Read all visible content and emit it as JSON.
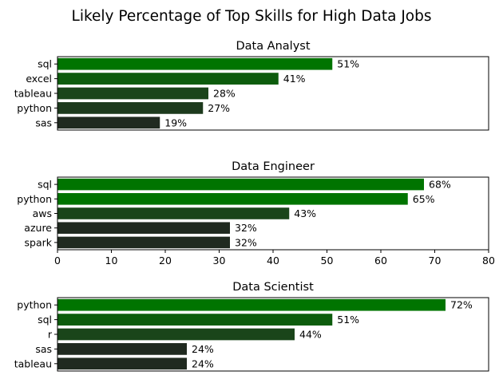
{
  "figure": {
    "title": "Likely Percentage of Top Skills for High Data Jobs"
  },
  "chart_data": [
    {
      "type": "bar",
      "orientation": "horizontal",
      "title": "Data Analyst",
      "categories": [
        "sql",
        "excel",
        "tableau",
        "python",
        "sas"
      ],
      "values": [
        51,
        41,
        28,
        27,
        19
      ],
      "value_labels": [
        "51%",
        "41%",
        "28%",
        "27%",
        "19%"
      ],
      "xlim": [
        0,
        80
      ],
      "x_ticks_visible": false,
      "colors": [
        "#007400",
        "#0d5c0d",
        "#1a451a",
        "#1d3a1d",
        "#202a20"
      ]
    },
    {
      "type": "bar",
      "orientation": "horizontal",
      "title": "Data Engineer",
      "categories": [
        "sql",
        "python",
        "aws",
        "azure",
        "spark"
      ],
      "values": [
        68,
        65,
        43,
        32,
        32
      ],
      "value_labels": [
        "68%",
        "65%",
        "43%",
        "32%",
        "32%"
      ],
      "xlim": [
        0,
        80
      ],
      "x_ticks": [
        "0",
        "10",
        "20",
        "30",
        "40",
        "50",
        "60",
        "70",
        "80"
      ],
      "x_ticks_visible": true,
      "colors": [
        "#007400",
        "#007400",
        "#1a451a",
        "#202a20",
        "#202a20"
      ]
    },
    {
      "type": "bar",
      "orientation": "horizontal",
      "title": "Data Scientist",
      "categories": [
        "python",
        "sql",
        "r",
        "sas",
        "tableau"
      ],
      "values": [
        72,
        51,
        44,
        24,
        24
      ],
      "value_labels": [
        "72%",
        "51%",
        "44%",
        "24%",
        "24%"
      ],
      "xlim": [
        0,
        80
      ],
      "x_ticks_visible": false,
      "colors": [
        "#007400",
        "#0d5c0d",
        "#1a451a",
        "#202a20",
        "#202a20"
      ]
    }
  ]
}
